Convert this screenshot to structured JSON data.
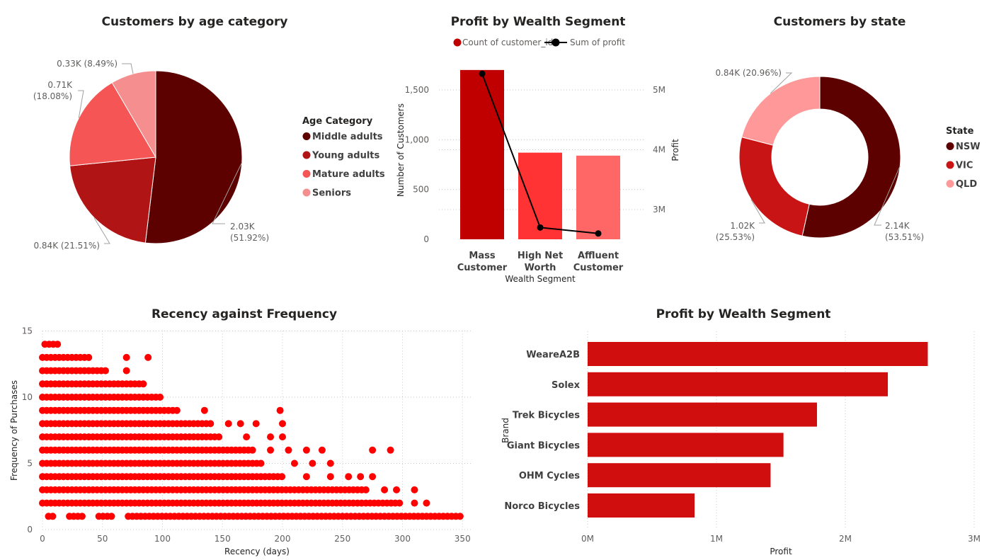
{
  "colors": {
    "dark_red": "#5C0000",
    "red": "#C00000",
    "mid_red": "#FF3333",
    "light_red": "#FF6666",
    "pale_red": "#F58F8F",
    "bright_red": "#FF0000",
    "bar_red": "#D10E0E",
    "axis_text": "#605E5C",
    "title_text": "#252423",
    "grid": "#C8C8C8"
  },
  "chart_data": [
    {
      "id": "age",
      "type": "pie",
      "title": "Customers by age category",
      "legend_title": "Age Category",
      "legend_position": "right",
      "slices": [
        {
          "name": "Middle adults",
          "value": 2.03,
          "label": "2.03K",
          "pct": "(51.92%)",
          "color": "#5C0000"
        },
        {
          "name": "Young adults",
          "value": 0.84,
          "label": "0.84K (21.51%)",
          "pct": "",
          "color": "#B01414"
        },
        {
          "name": "Mature adults",
          "value": 0.71,
          "label": "0.71K",
          "pct": "(18.08%)",
          "color": "#F55555"
        },
        {
          "name": "Seniors",
          "value": 0.33,
          "label": "0.33K (8.49%)",
          "pct": "",
          "color": "#F58F8F"
        }
      ]
    },
    {
      "id": "wealth",
      "type": "bar",
      "title": "Profit by Wealth Segment",
      "legend_position": "top",
      "legend": [
        "Count of customer_id",
        "Sum of profit"
      ],
      "xlabel": "Wealth Segment",
      "ylabel": "Number of Customers",
      "y2label": "Profit",
      "categories": [
        [
          "Mass",
          "Customer"
        ],
        [
          "High Net",
          "Worth"
        ],
        [
          "Affluent",
          "Customer"
        ]
      ],
      "bar_colors": [
        "#C00000",
        "#FF3333",
        "#FF6666"
      ],
      "count_values": [
        1700,
        870,
        840
      ],
      "profit_values": [
        5270000,
        2700000,
        2600000
      ],
      "ylim": [
        0,
        1700
      ],
      "y_ticks": [
        0,
        500,
        1000,
        1500
      ],
      "y_tick_labels": [
        "0",
        "500",
        "1,000",
        "1,500"
      ],
      "y2lim": [
        2400000,
        5500000
      ],
      "y2_ticks": [
        3000000,
        4000000,
        5000000
      ],
      "y2_tick_labels": [
        "3M",
        "4M",
        "5M"
      ]
    },
    {
      "id": "state",
      "type": "pie",
      "donut": true,
      "title": "Customers by state",
      "legend_title": "State",
      "legend_position": "right",
      "slices": [
        {
          "name": "NSW",
          "value": 2.14,
          "label": "2.14K",
          "pct": "(53.51%)",
          "color": "#5C0000"
        },
        {
          "name": "VIC",
          "value": 1.02,
          "label": "1.02K",
          "pct": "(25.53%)",
          "color": "#C81414"
        },
        {
          "name": "QLD",
          "value": 0.84,
          "label": "0.84K (20.96%)",
          "pct": "",
          "color": "#FF9999"
        }
      ]
    },
    {
      "id": "recency",
      "type": "scatter",
      "title": "Recency against Frequency",
      "xlabel": "Recency (days)",
      "ylabel": "Frequency of Purchases",
      "xlim": [
        0,
        355
      ],
      "ylim": [
        0,
        15
      ],
      "x_ticks": [
        0,
        50,
        100,
        150,
        200,
        250,
        300,
        350
      ],
      "y_ticks": [
        0,
        5,
        10,
        15
      ],
      "grid": true,
      "rows": [
        {
          "y": 14,
          "x_max": 13
        },
        {
          "y": 13,
          "x_max": 40,
          "extra": [
            70,
            88
          ]
        },
        {
          "y": 12,
          "x_max": 55,
          "extra": [
            70
          ]
        },
        {
          "y": 11,
          "x_max": 85
        },
        {
          "y": 10,
          "x_max": 100
        },
        {
          "y": 9,
          "x_max": 115,
          "extra": [
            135,
            198
          ]
        },
        {
          "y": 8,
          "x_max": 140,
          "extra": [
            155,
            165,
            178,
            200
          ]
        },
        {
          "y": 7,
          "x_max": 150,
          "extra": [
            170,
            190,
            200
          ]
        },
        {
          "y": 6,
          "x_max": 175,
          "extra": [
            190,
            205,
            220,
            233,
            275,
            290
          ]
        },
        {
          "y": 5,
          "x_max": 185,
          "extra": [
            210,
            225,
            240
          ]
        },
        {
          "y": 4,
          "x_max": 200,
          "extra": [
            220,
            240,
            255,
            265,
            275
          ]
        },
        {
          "y": 3,
          "x_max": 270,
          "extra": [
            285,
            295,
            310
          ]
        },
        {
          "y": 2,
          "x_max": 300,
          "extra": [
            310,
            320
          ]
        },
        {
          "y": 1,
          "x_max": 350
        }
      ]
    },
    {
      "id": "brand",
      "type": "bar",
      "orientation": "horizontal",
      "title": "Profit by Wealth Segment",
      "xlabel": "Profit",
      "ylabel": "Brand",
      "categories": [
        "WeareA2B",
        "Solex",
        "Trek Bicycles",
        "Giant Bicycles",
        "OHM Cycles",
        "Norco Bicycles"
      ],
      "values": [
        2640000,
        2330000,
        1780000,
        1520000,
        1420000,
        830000
      ],
      "xlim": [
        0,
        3000000
      ],
      "x_ticks": [
        0,
        1000000,
        2000000,
        3000000
      ],
      "x_tick_labels": [
        "0M",
        "1M",
        "2M",
        "3M"
      ],
      "color": "#D10E0E"
    }
  ]
}
